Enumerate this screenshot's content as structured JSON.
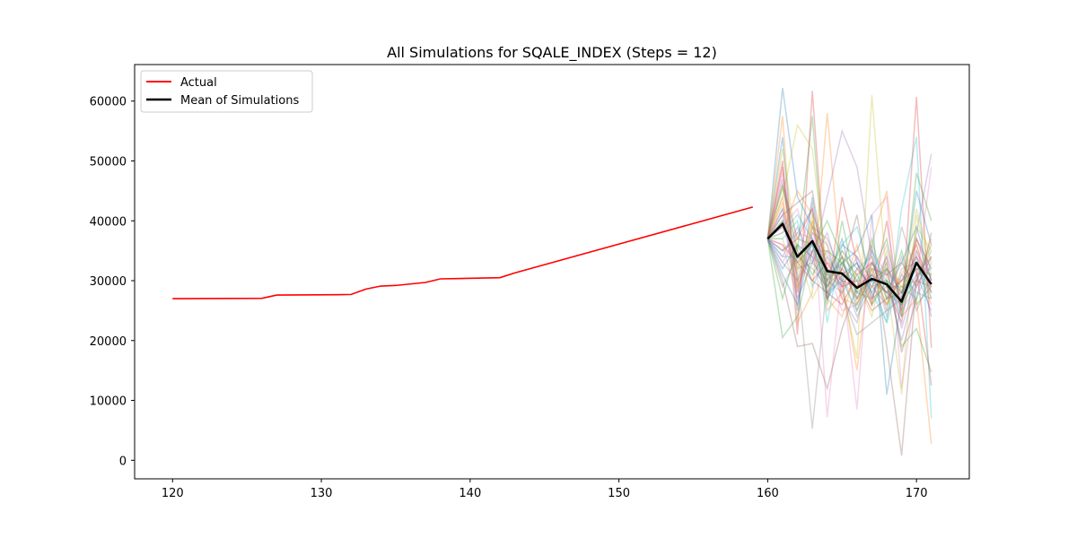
{
  "chart_data": {
    "type": "line",
    "title": "All Simulations for SQALE_INDEX (Steps = 12)",
    "xlabel": "",
    "ylabel": "",
    "xlim": [
      117.45,
      173.55
    ],
    "ylim": [
      -3100,
      66100
    ],
    "x_ticks": [
      "120",
      "130",
      "140",
      "150",
      "160",
      "170"
    ],
    "y_ticks": [
      "0",
      "10000",
      "20000",
      "30000",
      "40000",
      "50000",
      "60000"
    ],
    "grid": false,
    "legend_position": "upper-left",
    "legend": [
      {
        "label": "Actual",
        "color": "#ff0000"
      },
      {
        "label": "Mean of Simulations",
        "color": "#000000"
      }
    ],
    "actual": {
      "name": "Actual",
      "color": "#ff0000",
      "x": [
        120,
        126,
        127,
        131,
        132,
        133,
        134,
        135,
        137,
        138,
        142,
        143,
        159
      ],
      "y": [
        27000,
        27050,
        27600,
        27650,
        27700,
        28600,
        29100,
        29200,
        29700,
        30300,
        30500,
        31300,
        42300
      ]
    },
    "mean": {
      "name": "Mean of Simulations",
      "color": "#000000",
      "x": [
        160,
        161,
        162,
        163,
        164,
        165,
        166,
        167,
        168,
        169,
        170,
        171
      ],
      "y": [
        37000,
        39500,
        34000,
        36600,
        31600,
        31200,
        28800,
        30300,
        29400,
        26500,
        33000,
        29400
      ]
    },
    "simulations": {
      "count": 40,
      "x": [
        160,
        161,
        162,
        163,
        164,
        165,
        166,
        167,
        168,
        169,
        170,
        171
      ],
      "start_value": 37000,
      "opacity": 0.3,
      "colors": [
        "#1f77b4",
        "#ff7f0e",
        "#2ca02c",
        "#d62728",
        "#9467bd",
        "#8c564b",
        "#e377c2",
        "#7f7f7f",
        "#bcbd22",
        "#17becf"
      ],
      "series": [
        [
          37000,
          62200,
          44000,
          39000,
          31000,
          36000,
          34000,
          30000,
          28000,
          33000,
          39000,
          30000
        ],
        [
          37000,
          57500,
          23000,
          28000,
          58000,
          30000,
          15000,
          36000,
          45000,
          24000,
          27000,
          2700
        ],
        [
          37000,
          45500,
          35000,
          57500,
          26000,
          40000,
          28000,
          30000,
          32000,
          19000,
          22000,
          14700
        ],
        [
          37000,
          50000,
          21000,
          61700,
          27000,
          44000,
          33000,
          26000,
          40000,
          24000,
          60700,
          18800
        ],
        [
          37000,
          41000,
          27000,
          33000,
          44000,
          55000,
          49000,
          34000,
          25000,
          27000,
          38000,
          51200
        ],
        [
          37000,
          30000,
          19000,
          19500,
          12000,
          22000,
          29000,
          36000,
          19000,
          800,
          30000,
          29000
        ],
        [
          37000,
          48000,
          33000,
          43000,
          7200,
          31000,
          8500,
          41000,
          44000,
          12000,
          30000,
          49000
        ],
        [
          37000,
          40000,
          31000,
          5300,
          30000,
          28000,
          21000,
          23000,
          25000,
          39000,
          31000,
          34000
        ],
        [
          37000,
          44000,
          56000,
          52000,
          31000,
          29000,
          17000,
          61000,
          30000,
          11000,
          41000,
          31000
        ],
        [
          37000,
          35000,
          38000,
          42000,
          23000,
          36000,
          39000,
          30000,
          23000,
          42000,
          54000,
          7000
        ],
        [
          37000,
          54000,
          25000,
          44000,
          27000,
          33000,
          35000,
          41000,
          11000,
          27000,
          45000,
          36000
        ],
        [
          37000,
          38000,
          45000,
          41000,
          27000,
          24000,
          32000,
          29000,
          30000,
          28000,
          33000,
          26000
        ],
        [
          37000,
          20500,
          24000,
          35000,
          40000,
          34000,
          26000,
          31000,
          37000,
          25000,
          48000,
          40000
        ],
        [
          37000,
          36000,
          33000,
          30000,
          33000,
          29000,
          30000,
          25000,
          27000,
          30000,
          32000,
          12500
        ],
        [
          37000,
          42000,
          28000,
          38000,
          36000,
          27000,
          23000,
          33000,
          30000,
          20000,
          30000,
          35000
        ],
        [
          37000,
          46000,
          37000,
          36000,
          29000,
          32000,
          41000,
          27000,
          33000,
          18000,
          27000,
          38000
        ],
        [
          37000,
          39000,
          42000,
          34000,
          32000,
          25000,
          26000,
          35000,
          31000,
          30000,
          36000,
          28000
        ],
        [
          37000,
          33000,
          30000,
          39000,
          37000,
          31000,
          24000,
          29000,
          26000,
          34000,
          25000,
          31000
        ],
        [
          37000,
          52000,
          35000,
          27000,
          32000,
          35000,
          30000,
          24000,
          35000,
          28000,
          42000,
          33000
        ],
        [
          37000,
          37000,
          40000,
          29000,
          34000,
          30000,
          33000,
          28000,
          23000,
          31000,
          28000,
          27000
        ],
        [
          37000,
          31000,
          26000,
          37000,
          30000,
          37000,
          27000,
          31000,
          28000,
          26000,
          34000,
          24000
        ],
        [
          37000,
          43000,
          32000,
          40000,
          25000,
          28000,
          36000,
          26000,
          32000,
          29000,
          30000,
          37000
        ],
        [
          37000,
          27000,
          36000,
          31000,
          35000,
          33000,
          28000,
          37000,
          27000,
          35000,
          26000,
          29000
        ],
        [
          37000,
          49000,
          29000,
          35000,
          28000,
          26000,
          31000,
          33000,
          29000,
          23000,
          37000,
          32000
        ],
        [
          37000,
          34000,
          39000,
          33000,
          38000,
          29000,
          34000,
          27000,
          34000,
          27000,
          31000,
          25000
        ],
        [
          37000,
          41000,
          43000,
          45000,
          30000,
          34000,
          25000,
          32000,
          31000,
          33000,
          29000,
          34000
        ],
        [
          37000,
          36000,
          27000,
          38000,
          33000,
          32000,
          29000,
          30000,
          36000,
          25000,
          35000,
          30000
        ],
        [
          37000,
          29000,
          34000,
          32000,
          29000,
          35000,
          32000,
          34000,
          24000,
          32000,
          33000,
          28000
        ],
        [
          37000,
          46000,
          31000,
          41000,
          36000,
          30000,
          27000,
          29000,
          33000,
          24000,
          39000,
          35000
        ],
        [
          37000,
          38000,
          41000,
          37000,
          31000,
          33000,
          30000,
          35000,
          29000,
          29000,
          27000,
          33000
        ],
        [
          37000,
          32000,
          36000,
          34000,
          27000,
          31000,
          33000,
          28000,
          32000,
          28000,
          32000,
          31000
        ],
        [
          37000,
          44000,
          28000,
          39000,
          34000,
          27000,
          26000,
          32000,
          26000,
          31000,
          36000,
          27000
        ],
        [
          37000,
          40000,
          33000,
          36000,
          29000,
          34000,
          31000,
          26000,
          30000,
          26000,
          30000,
          36000
        ],
        [
          37000,
          35000,
          37000,
          42000,
          32000,
          30000,
          29000,
          31000,
          28000,
          30000,
          34000,
          29000
        ],
        [
          37000,
          47000,
          30000,
          35000,
          35000,
          28000,
          32000,
          29000,
          34000,
          22000,
          31000,
          32000
        ],
        [
          37000,
          39000,
          35000,
          30000,
          28000,
          32000,
          27000,
          33000,
          27000,
          28000,
          37000,
          30000
        ],
        [
          37000,
          33000,
          38000,
          37000,
          33000,
          29000,
          30000,
          30000,
          31000,
          25000,
          29000,
          34000
        ],
        [
          37000,
          42000,
          32000,
          33000,
          30000,
          33000,
          28000,
          27000,
          29000,
          27000,
          35000,
          28000
        ],
        [
          37000,
          37000,
          29000,
          40000,
          31000,
          31000,
          31000,
          32000,
          26000,
          29000,
          32000,
          31000
        ],
        [
          37000,
          34000,
          34000,
          36000,
          28000,
          30000,
          25000,
          30000,
          30000,
          24000,
          33000,
          27000
        ]
      ]
    }
  }
}
